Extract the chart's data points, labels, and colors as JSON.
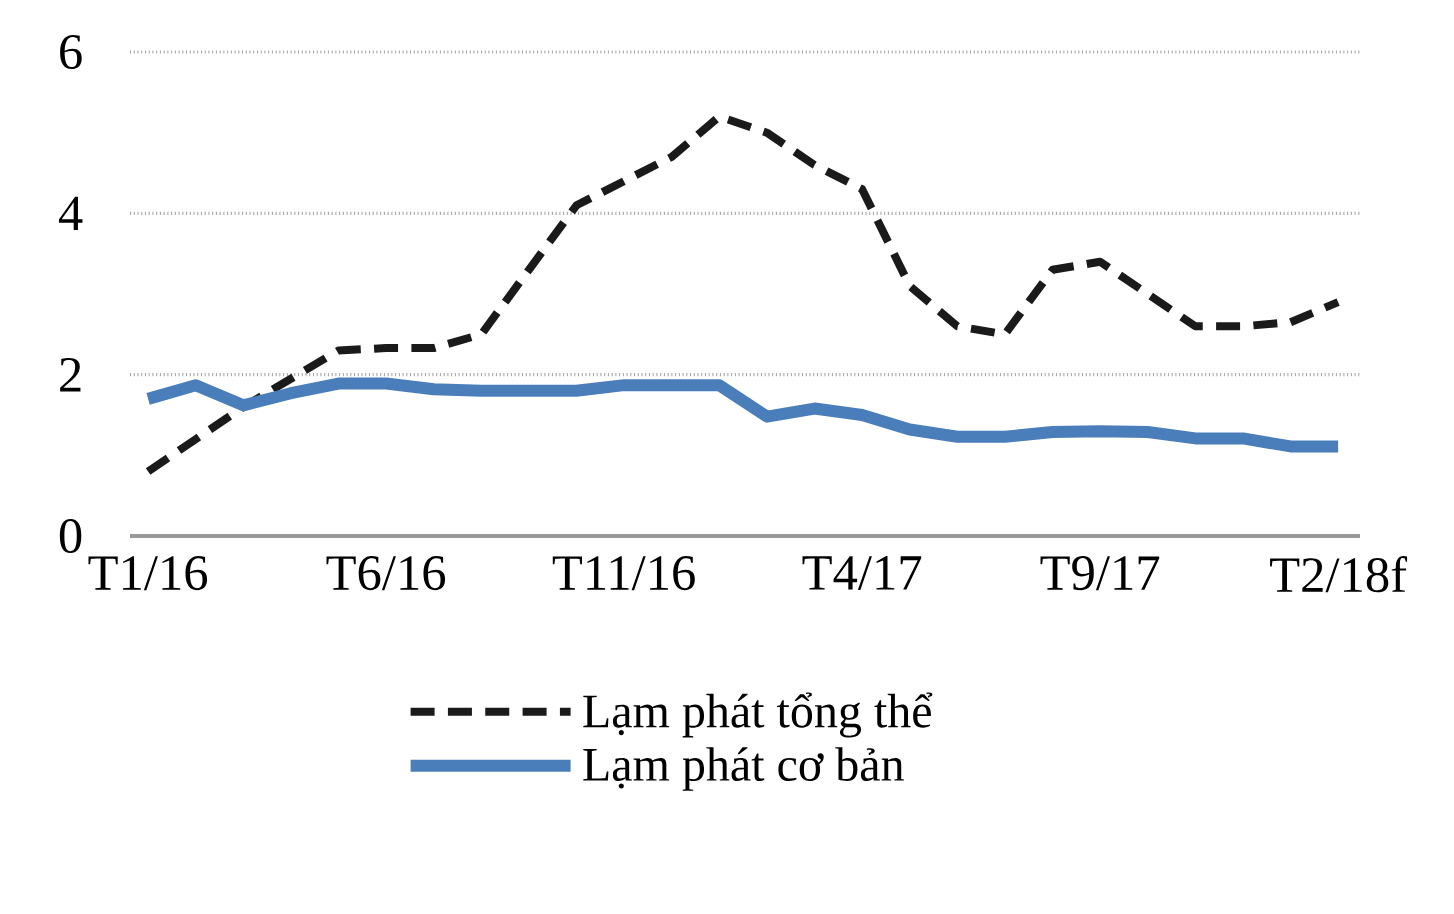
{
  "chart_data": {
    "type": "line",
    "categories": [
      "T1/16",
      null,
      null,
      null,
      null,
      "T6/16",
      null,
      null,
      null,
      null,
      "T11/16",
      null,
      null,
      null,
      null,
      "T4/17",
      null,
      null,
      null,
      null,
      "T9/17",
      null,
      null,
      null,
      null,
      "T2/18f"
    ],
    "series": [
      {
        "name": "Lạm phát tổng thể",
        "color": "#1a1a1a",
        "line_style": "dashed",
        "values": [
          0.8,
          1.2,
          1.6,
          1.95,
          2.3,
          2.33,
          2.33,
          2.5,
          3.3,
          4.1,
          4.4,
          4.7,
          5.2,
          5.0,
          4.6,
          4.3,
          3.1,
          2.6,
          2.5,
          3.3,
          3.4,
          3.0,
          2.6,
          2.6,
          2.65,
          2.9
        ]
      },
      {
        "name": "Lạm phát cơ bản",
        "color": "#4a7ebb",
        "line_style": "solid",
        "values": [
          1.7,
          1.87,
          1.62,
          1.77,
          1.89,
          1.89,
          1.82,
          1.8,
          1.8,
          1.8,
          1.87,
          1.87,
          1.87,
          1.48,
          1.58,
          1.5,
          1.32,
          1.23,
          1.23,
          1.29,
          1.3,
          1.29,
          1.21,
          1.21,
          1.11,
          1.11
        ]
      }
    ],
    "ylim": [
      0,
      6
    ],
    "yticks": [
      0,
      2,
      4,
      6
    ],
    "grid": "y",
    "legend": "bottom",
    "marker": "none"
  }
}
